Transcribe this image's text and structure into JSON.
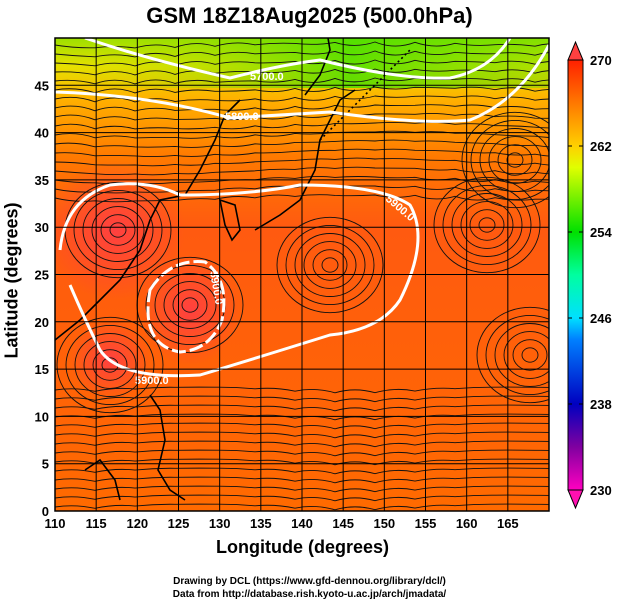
{
  "title": "GSM 18Z18Aug2025 (500.0hPa)",
  "xlabel": "Longitude (degrees)",
  "ylabel": "Latitude  (degrees)",
  "credits": [
    "Drawing by DCL (https://www.gfd-dennou.org/library/dcl/)",
    "Data from http://database.rish.kyoto-u.ac.jp/arch/jmadata/"
  ],
  "chart_data": {
    "type": "heatmap",
    "xlim": [
      110,
      170
    ],
    "ylim": [
      0,
      50
    ],
    "xticks": [
      110,
      115,
      120,
      125,
      130,
      135,
      140,
      145,
      150,
      155,
      160,
      165
    ],
    "yticks": [
      0,
      5,
      10,
      15,
      20,
      25,
      30,
      35,
      40,
      45
    ],
    "colorbar": {
      "ticks": [
        230,
        238,
        246,
        254,
        262,
        270
      ],
      "range": [
        230,
        270
      ],
      "extend": "both"
    },
    "contours": [
      {
        "label": "5700.0"
      },
      {
        "label": "5800.0"
      },
      {
        "label": "5900.0"
      },
      {
        "label": "5900.0"
      },
      {
        "label": "5900.0"
      }
    ]
  }
}
